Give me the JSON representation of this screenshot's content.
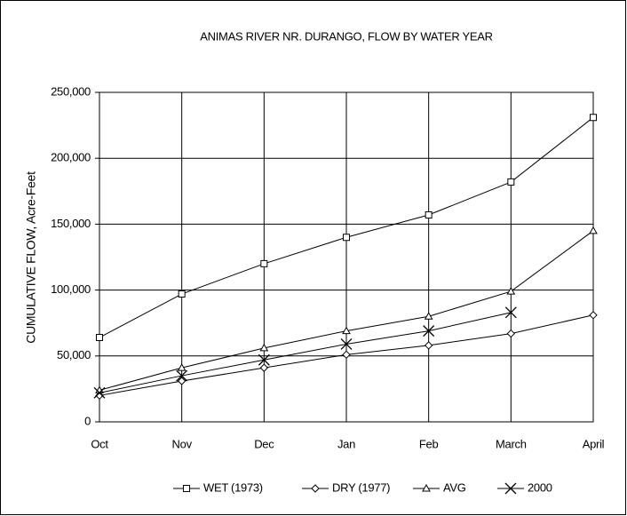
{
  "chart_data": {
    "type": "line",
    "title": "ANIMAS RIVER NR. DURANGO, FLOW BY WATER YEAR",
    "y_label": "CUMULATIVE FLOW, Acre-Feet",
    "categories": [
      "Oct",
      "Nov",
      "Dec",
      "Jan",
      "Feb",
      "March",
      "April"
    ],
    "series": [
      {
        "name": "WET (1973)",
        "color": "#000000",
        "marker": "square",
        "values": [
          64000,
          97000,
          120000,
          140000,
          157000,
          182000,
          231000
        ]
      },
      {
        "name": "DRY (1977)",
        "color": "#000000",
        "marker": "diamond",
        "values": [
          20000,
          31000,
          41000,
          51000,
          58000,
          67000,
          81000
        ]
      },
      {
        "name": "AVG",
        "color": "#000000",
        "marker": "triangle",
        "values": [
          24000,
          41000,
          56000,
          69000,
          80000,
          99000,
          145000
        ]
      },
      {
        "name": "2000",
        "color": "#000000",
        "marker": "cross",
        "values": [
          22000,
          35000,
          47000,
          59000,
          69000,
          83000,
          null
        ]
      }
    ],
    "ylim": [
      0,
      250000
    ],
    "yticks": [
      0,
      {
        "value": 50000,
        "label": "50,000"
      },
      {
        "value": 100000,
        "label": "100,000"
      },
      {
        "value": 150000,
        "label": "150,000"
      },
      {
        "value": 200000,
        "label": "200,000"
      },
      {
        "value": 250000,
        "label": "250,000"
      }
    ],
    "grid": true,
    "legend": "bottom"
  }
}
